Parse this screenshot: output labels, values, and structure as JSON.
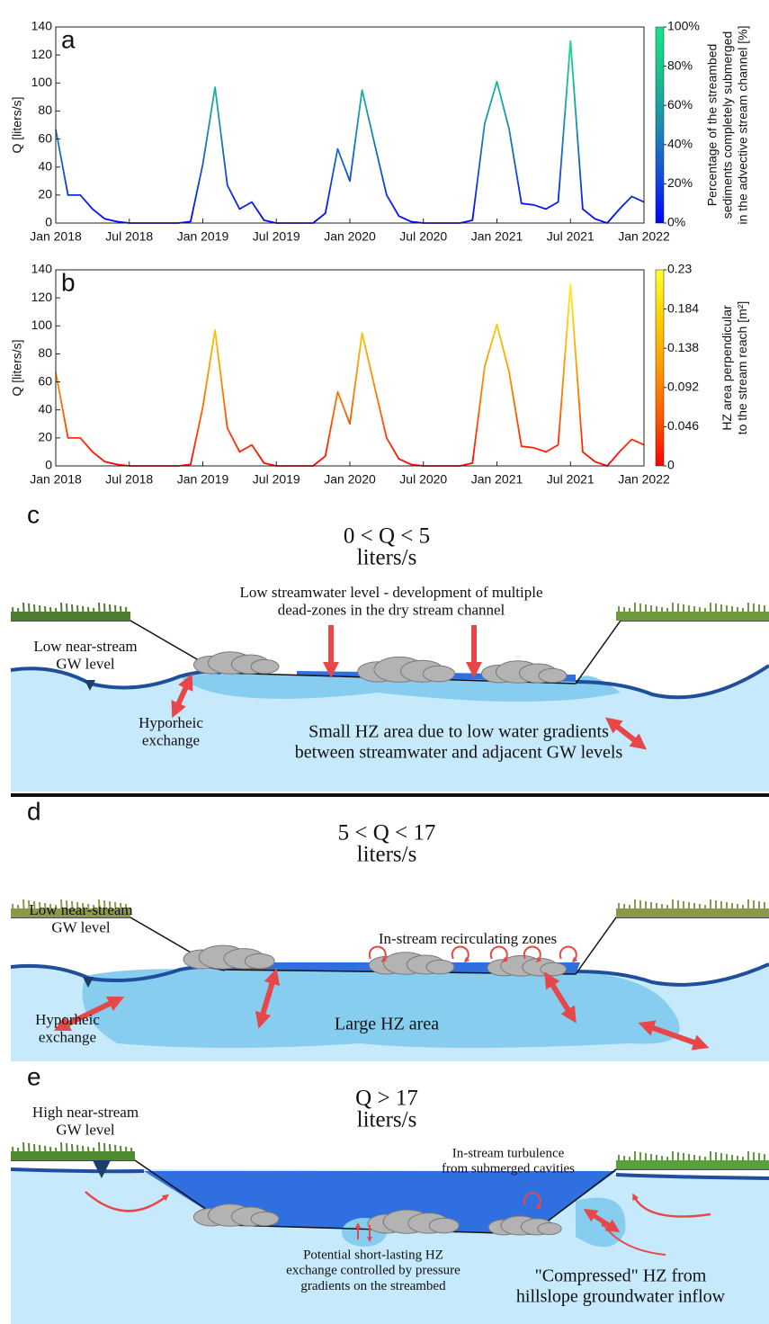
{
  "chart_data": [
    {
      "type": "line",
      "panel_label": "a",
      "y_label": "Q [liters/s]",
      "colorbar_label": [
        "Percentage of the streambed",
        "sediments completely submerged",
        "in the advective stream channel [%]"
      ],
      "colormap": [
        "#0000ff",
        "#1450d8",
        "#1a8fb0",
        "#19c08e",
        "#14e68c"
      ],
      "x": [
        "2018-01",
        "2018-02",
        "2018-03",
        "2018-04",
        "2018-05",
        "2018-06",
        "2018-07",
        "2018-08",
        "2018-09",
        "2018-10",
        "2018-11",
        "2018-12",
        "2019-01",
        "2019-02",
        "2019-03",
        "2019-04",
        "2019-05",
        "2019-06",
        "2019-07",
        "2019-08",
        "2019-09",
        "2019-10",
        "2019-11",
        "2019-12",
        "2020-01",
        "2020-02",
        "2020-03",
        "2020-04",
        "2020-05",
        "2020-06",
        "2020-07",
        "2020-08",
        "2020-09",
        "2020-10",
        "2020-11",
        "2020-12",
        "2021-01",
        "2021-02",
        "2021-03",
        "2021-04",
        "2021-05",
        "2021-06",
        "2021-07",
        "2021-08",
        "2021-09",
        "2021-10",
        "2021-11",
        "2021-12",
        "2022-01"
      ],
      "values": [
        67,
        20,
        20,
        10,
        3,
        1,
        0,
        0,
        0,
        0,
        0,
        1,
        42,
        97,
        27,
        10,
        15,
        2,
        0,
        0,
        0,
        0,
        7,
        53,
        30,
        95,
        57,
        20,
        5,
        1,
        0,
        0,
        0,
        0,
        2,
        71,
        101,
        67,
        14,
        13,
        10,
        15,
        130,
        10,
        3,
        0,
        10,
        19,
        15
      ],
      "xticks": [
        {
          "value": "2018-01",
          "label": "Jan 2018"
        },
        {
          "value": "2018-07",
          "label": "Jul 2018"
        },
        {
          "value": "2019-01",
          "label": "Jan 2019"
        },
        {
          "value": "2019-07",
          "label": "Jul 2019"
        },
        {
          "value": "2020-01",
          "label": "Jan 2020"
        },
        {
          "value": "2020-07",
          "label": "Jul 2020"
        },
        {
          "value": "2021-01",
          "label": "Jan 2021"
        },
        {
          "value": "2021-07",
          "label": "Jul 2021"
        },
        {
          "value": "2022-01",
          "label": "Jan 2022"
        }
      ],
      "ylim": [
        0,
        140
      ],
      "yticks": [
        0,
        20,
        40,
        60,
        80,
        100,
        120,
        140
      ],
      "colorbar_lim": [
        0,
        100
      ],
      "colorbar_ticks": [
        {
          "value": 0,
          "label": "0%"
        },
        {
          "value": 20,
          "label": "20%"
        },
        {
          "value": 40,
          "label": "40%"
        },
        {
          "value": 60,
          "label": "60%"
        },
        {
          "value": 80,
          "label": "80%"
        },
        {
          "value": 100,
          "label": "100%"
        }
      ]
    },
    {
      "type": "line",
      "panel_label": "b",
      "y_label": "Q [liters/s]",
      "colorbar_label": [
        "HZ area perpendicular",
        "to the stream reach [m²]"
      ],
      "colormap": [
        "#ff0000",
        "#ff5a00",
        "#ff9a00",
        "#ffd000",
        "#ffff30"
      ],
      "x": [
        "2018-01",
        "2018-02",
        "2018-03",
        "2018-04",
        "2018-05",
        "2018-06",
        "2018-07",
        "2018-08",
        "2018-09",
        "2018-10",
        "2018-11",
        "2018-12",
        "2019-01",
        "2019-02",
        "2019-03",
        "2019-04",
        "2019-05",
        "2019-06",
        "2019-07",
        "2019-08",
        "2019-09",
        "2019-10",
        "2019-11",
        "2019-12",
        "2020-01",
        "2020-02",
        "2020-03",
        "2020-04",
        "2020-05",
        "2020-06",
        "2020-07",
        "2020-08",
        "2020-09",
        "2020-10",
        "2020-11",
        "2020-12",
        "2021-01",
        "2021-02",
        "2021-03",
        "2021-04",
        "2021-05",
        "2021-06",
        "2021-07",
        "2021-08",
        "2021-09",
        "2021-10",
        "2021-11",
        "2021-12",
        "2022-01"
      ],
      "values": [
        67,
        20,
        20,
        10,
        3,
        1,
        0,
        0,
        0,
        0,
        0,
        1,
        42,
        97,
        27,
        10,
        15,
        2,
        0,
        0,
        0,
        0,
        7,
        53,
        30,
        95,
        57,
        20,
        5,
        1,
        0,
        0,
        0,
        0,
        2,
        71,
        101,
        67,
        14,
        13,
        10,
        15,
        130,
        10,
        3,
        0,
        10,
        19,
        15
      ],
      "xticks": [
        {
          "value": "2018-01",
          "label": "Jan 2018"
        },
        {
          "value": "2018-07",
          "label": "Jul 2018"
        },
        {
          "value": "2019-01",
          "label": "Jan 2019"
        },
        {
          "value": "2019-07",
          "label": "Jul 2019"
        },
        {
          "value": "2020-01",
          "label": "Jan 2020"
        },
        {
          "value": "2020-07",
          "label": "Jul 2020"
        },
        {
          "value": "2021-01",
          "label": "Jan 2021"
        },
        {
          "value": "2021-07",
          "label": "Jul 2021"
        },
        {
          "value": "2022-01",
          "label": "Jan 2022"
        }
      ],
      "ylim": [
        0,
        140
      ],
      "yticks": [
        0,
        20,
        40,
        60,
        80,
        100,
        120,
        140
      ],
      "colorbar_lim": [
        0,
        0.23
      ],
      "colorbar_ticks": [
        0,
        0.046,
        0.092,
        0.138,
        0.184,
        0.23
      ]
    }
  ],
  "panels": [
    {
      "label": "c",
      "title": [
        "0 < Q < 5",
        "liters/s"
      ],
      "annotations": [
        [
          "Low streamwater level - development of multiple",
          "dead-zones in the dry stream channel"
        ],
        [
          "Low near-stream",
          "GW level"
        ],
        [
          "Hyporheic",
          "exchange"
        ],
        [
          "Small HZ area due to low water gradients",
          "between streamwater and adjacent GW levels"
        ]
      ]
    },
    {
      "label": "d",
      "title": [
        "5 < Q < 17",
        "liters/s"
      ],
      "annotations": [
        [
          "Low near-stream",
          "GW level"
        ],
        [
          "In-stream recirculating zones"
        ],
        [
          "Large HZ area"
        ],
        [
          "Hyporheic",
          "exchange"
        ]
      ]
    },
    {
      "label": "e",
      "title": [
        "Q > 17",
        "liters/s"
      ],
      "annotations": [
        [
          "High near-stream",
          "GW level"
        ],
        [
          "In-stream turbulence",
          "from submerged cavities"
        ],
        [
          "Potential short-lasting HZ",
          "exchange controlled by pressure",
          "gradients on the streambed"
        ],
        [
          "\"Compressed\" HZ from",
          "hillslope groundwater inflow"
        ]
      ]
    }
  ]
}
